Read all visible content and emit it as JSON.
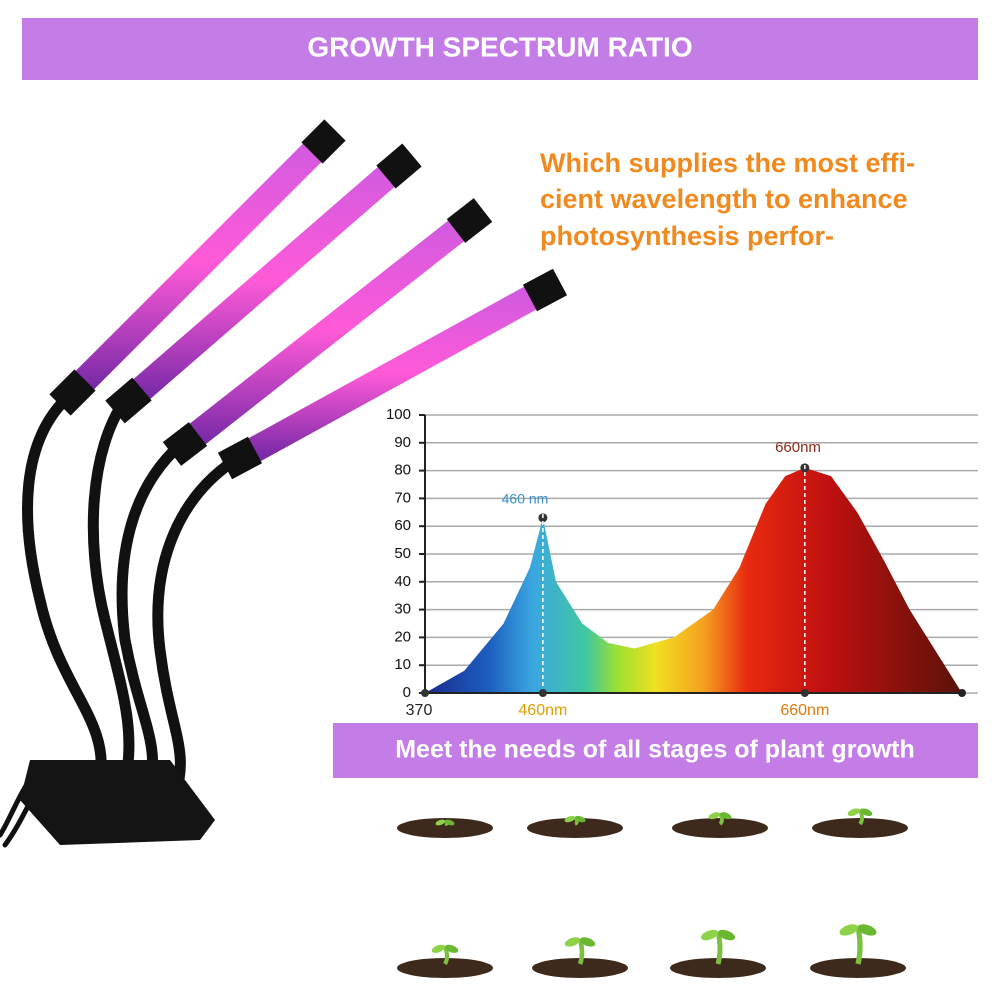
{
  "header": {
    "title": "GROWTH SPECTRUM RATIO"
  },
  "description": {
    "lines": [
      "Which supplies the most effi-",
      "cient wavelength to  enhance",
      "photosynthesis  perfor-"
    ]
  },
  "chart_data": {
    "type": "area",
    "x": [
      370,
      400,
      430,
      450,
      460,
      470,
      490,
      510,
      530,
      560,
      590,
      610,
      630,
      645,
      660,
      680,
      700,
      720,
      740,
      760,
      780
    ],
    "values": [
      0,
      8,
      25,
      45,
      63,
      40,
      25,
      18,
      16,
      20,
      30,
      45,
      68,
      78,
      81,
      78,
      65,
      48,
      30,
      15,
      0
    ],
    "xlim": [
      370,
      780
    ],
    "xticks": [
      370,
      {
        "value": 460,
        "label": "460nm"
      },
      {
        "value": 660,
        "label": "660nm"
      }
    ],
    "ylim": [
      0,
      100
    ],
    "yticks": [
      0,
      10,
      20,
      30,
      40,
      50,
      60,
      70,
      80,
      90,
      100
    ],
    "grid": true,
    "annotations": [
      "460 nm",
      "660nm"
    ]
  },
  "banner": {
    "text": "Meet the needs of all stages of plant growth"
  }
}
